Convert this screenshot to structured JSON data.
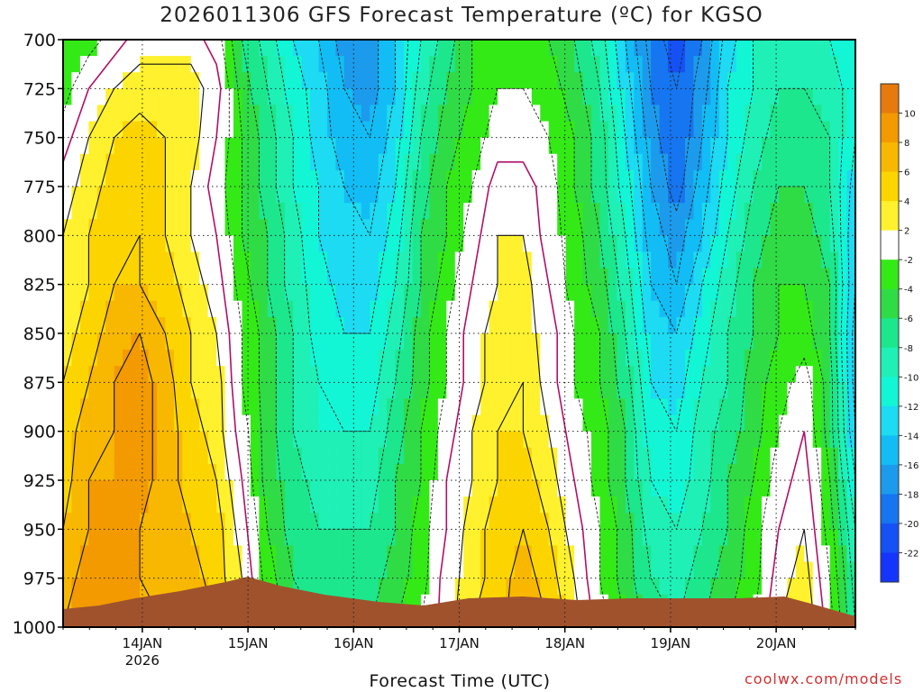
{
  "chart_data": {
    "type": "contour",
    "title": "2026011306 GFS Forecast Temperature (ºC) for KGSO",
    "xlabel": "Forecast Time (UTC)",
    "ylabel": "",
    "y_axis": {
      "ticks": [
        700,
        725,
        750,
        775,
        800,
        825,
        850,
        875,
        900,
        925,
        950,
        975,
        1000
      ],
      "inverted": true,
      "range": [
        700,
        1000
      ]
    },
    "x_axis": {
      "ticks": [
        "14JAN",
        "15JAN",
        "16JAN",
        "17JAN",
        "18JAN",
        "19JAN",
        "20JAN"
      ],
      "year_label": "2026",
      "range": [
        "2026-01-13T06",
        "2026-01-20T18"
      ]
    },
    "grid": true,
    "colorbar": {
      "levels": [
        10,
        8,
        6,
        4,
        2,
        -2,
        -4,
        -6,
        -8,
        -10,
        -12,
        -14,
        -16,
        -18,
        -20,
        -22
      ],
      "labels": [
        "10",
        "8",
        "6",
        "4",
        "2",
        "-2",
        "-4",
        "-6",
        "-8",
        "-10",
        "-12",
        "-14",
        "-16",
        "-18",
        "-20",
        "-22"
      ],
      "colors": [
        "#e67a0d",
        "#f29a00",
        "#f8b700",
        "#fcd500",
        "#fff12e",
        "#ffffff",
        "#34ea16",
        "#2fdc46",
        "#1ce78c",
        "#1ff0b5",
        "#12f6d6",
        "#1cdbf2",
        "#12bdf5",
        "#1c9bec",
        "#1675f0",
        "#1551f5",
        "#1635fc"
      ]
    },
    "series": [
      {
        "temps_c": [
          [
            -4,
            -3,
            -1,
            1,
            1,
            1,
            -1,
            -6,
            -9,
            -12,
            -14,
            -17,
            -17,
            -14,
            -10,
            -7,
            -4,
            -3,
            -3,
            -4,
            -6,
            -9,
            -14,
            -19,
            -21,
            -18,
            -13,
            -10,
            -9,
            -9,
            -10,
            -11
          ]
        ]
      },
      {
        "temps_c": [
          [
            -3,
            0,
            2,
            3,
            3,
            3,
            1,
            -5,
            -8,
            -11,
            -13,
            -16,
            -17,
            -14,
            -9,
            -6,
            -4,
            -2,
            -2,
            -3,
            -5,
            -8,
            -13,
            -18,
            -20,
            -17,
            -12,
            -10,
            -8,
            -8,
            -9,
            -11
          ]
        ]
      },
      {
        "temps_c": [
          [
            -1,
            2,
            4,
            5,
            4,
            3,
            0,
            -4,
            -7,
            -10,
            -13,
            -15,
            -16,
            -13,
            -8,
            -5,
            -3,
            -1,
            -1,
            -2,
            -4,
            -7,
            -12,
            -17,
            -20,
            -16,
            -12,
            -9,
            -7,
            -7,
            -8,
            -12
          ]
        ]
      },
      {
        "temps_c": [
          [
            1,
            3,
            5,
            5,
            4,
            2,
            -1,
            -4,
            -7,
            -10,
            -12,
            -14,
            -15,
            -12,
            -7,
            -4,
            -2,
            1,
            1,
            -1,
            -4,
            -7,
            -11,
            -16,
            -19,
            -15,
            -11,
            -8,
            -6,
            -6,
            -8,
            -13
          ]
        ]
      },
      {
        "temps_c": [
          [
            2,
            4,
            5,
            6,
            4,
            2,
            0,
            -4,
            -6,
            -9,
            -12,
            -13,
            -14,
            -11,
            -6,
            -4,
            -1,
            2,
            2,
            -1,
            -3,
            -6,
            -10,
            -15,
            -17,
            -14,
            -10,
            -7,
            -5,
            -5,
            -7,
            -14
          ]
        ]
      },
      {
        "temps_c": [
          [
            3,
            4,
            6,
            6,
            5,
            3,
            1,
            -3,
            -6,
            -9,
            -11,
            -13,
            -13,
            -10,
            -6,
            -3,
            0,
            2,
            3,
            0,
            -3,
            -5,
            -9,
            -14,
            -16,
            -12,
            -9,
            -6,
            -4,
            -4,
            -6,
            -14
          ]
        ]
      },
      {
        "temps_c": [
          [
            3,
            5,
            7,
            8,
            6,
            4,
            2,
            -2,
            -5,
            -8,
            -11,
            -12,
            -12,
            -9,
            -5,
            -2,
            1,
            3,
            3,
            1,
            -2,
            -4,
            -8,
            -13,
            -14,
            -11,
            -8,
            -6,
            -4,
            -3,
            -6,
            -15
          ]
        ]
      },
      {
        "temps_c": [
          [
            4,
            6,
            8,
            9,
            7,
            4,
            3,
            -2,
            -5,
            -8,
            -10,
            -11,
            -11,
            -8,
            -5,
            -2,
            1,
            3,
            4,
            1,
            -2,
            -4,
            -7,
            -12,
            -13,
            -10,
            -8,
            -5,
            -3,
            -1,
            -5,
            -15
          ]
        ]
      },
      {
        "temps_c": [
          [
            5,
            7,
            8,
            9,
            7,
            5,
            3,
            -1,
            -5,
            -8,
            -10,
            -10,
            -10,
            -7,
            -4,
            -1,
            2,
            4,
            4,
            2,
            -1,
            -3,
            -6,
            -11,
            -12,
            -9,
            -7,
            -5,
            -2,
            0,
            -5,
            -14
          ]
        ]
      },
      {
        "temps_c": [
          [
            5,
            8,
            8,
            9,
            7,
            5,
            4,
            0,
            -5,
            -7,
            -9,
            -9,
            -9,
            -6,
            -4,
            0,
            2,
            4,
            5,
            3,
            0,
            -3,
            -6,
            -10,
            -11,
            -9,
            -6,
            -4,
            -1,
            1,
            -4,
            -12
          ]
        ]
      },
      {
        "temps_c": [
          [
            6,
            8,
            9,
            8,
            7,
            6,
            5,
            1,
            -4,
            -7,
            -8,
            -8,
            -8,
            -6,
            -3,
            0,
            3,
            5,
            6,
            4,
            1,
            -2,
            -5,
            -9,
            -10,
            -8,
            -6,
            -3,
            0,
            2,
            -3,
            -10
          ]
        ]
      },
      {
        "temps_c": [
          [
            7,
            9,
            9,
            8,
            7,
            7,
            5,
            2,
            -3,
            -6,
            -7,
            -7,
            -7,
            -5,
            -3,
            1,
            3,
            5,
            7,
            5,
            2,
            -2,
            -5,
            -8,
            -9,
            -7,
            -5,
            -3,
            1,
            3,
            -2,
            -9
          ]
        ]
      },
      {
        "temps_c": [
          [
            8,
            10,
            9,
            8,
            8,
            8,
            6,
            3,
            -2,
            -5,
            -6,
            -6,
            -6,
            -4,
            -2,
            1,
            4,
            5,
            8,
            6,
            3,
            -1,
            -4,
            -7,
            -8,
            -6,
            -4,
            -2,
            2,
            4,
            -1,
            -8
          ]
        ]
      }
    ],
    "series_pressures_hpa": [
      700,
      725,
      750,
      775,
      800,
      825,
      850,
      875,
      900,
      925,
      950,
      975,
      1000
    ]
  },
  "credit": "coolwx.com/models"
}
